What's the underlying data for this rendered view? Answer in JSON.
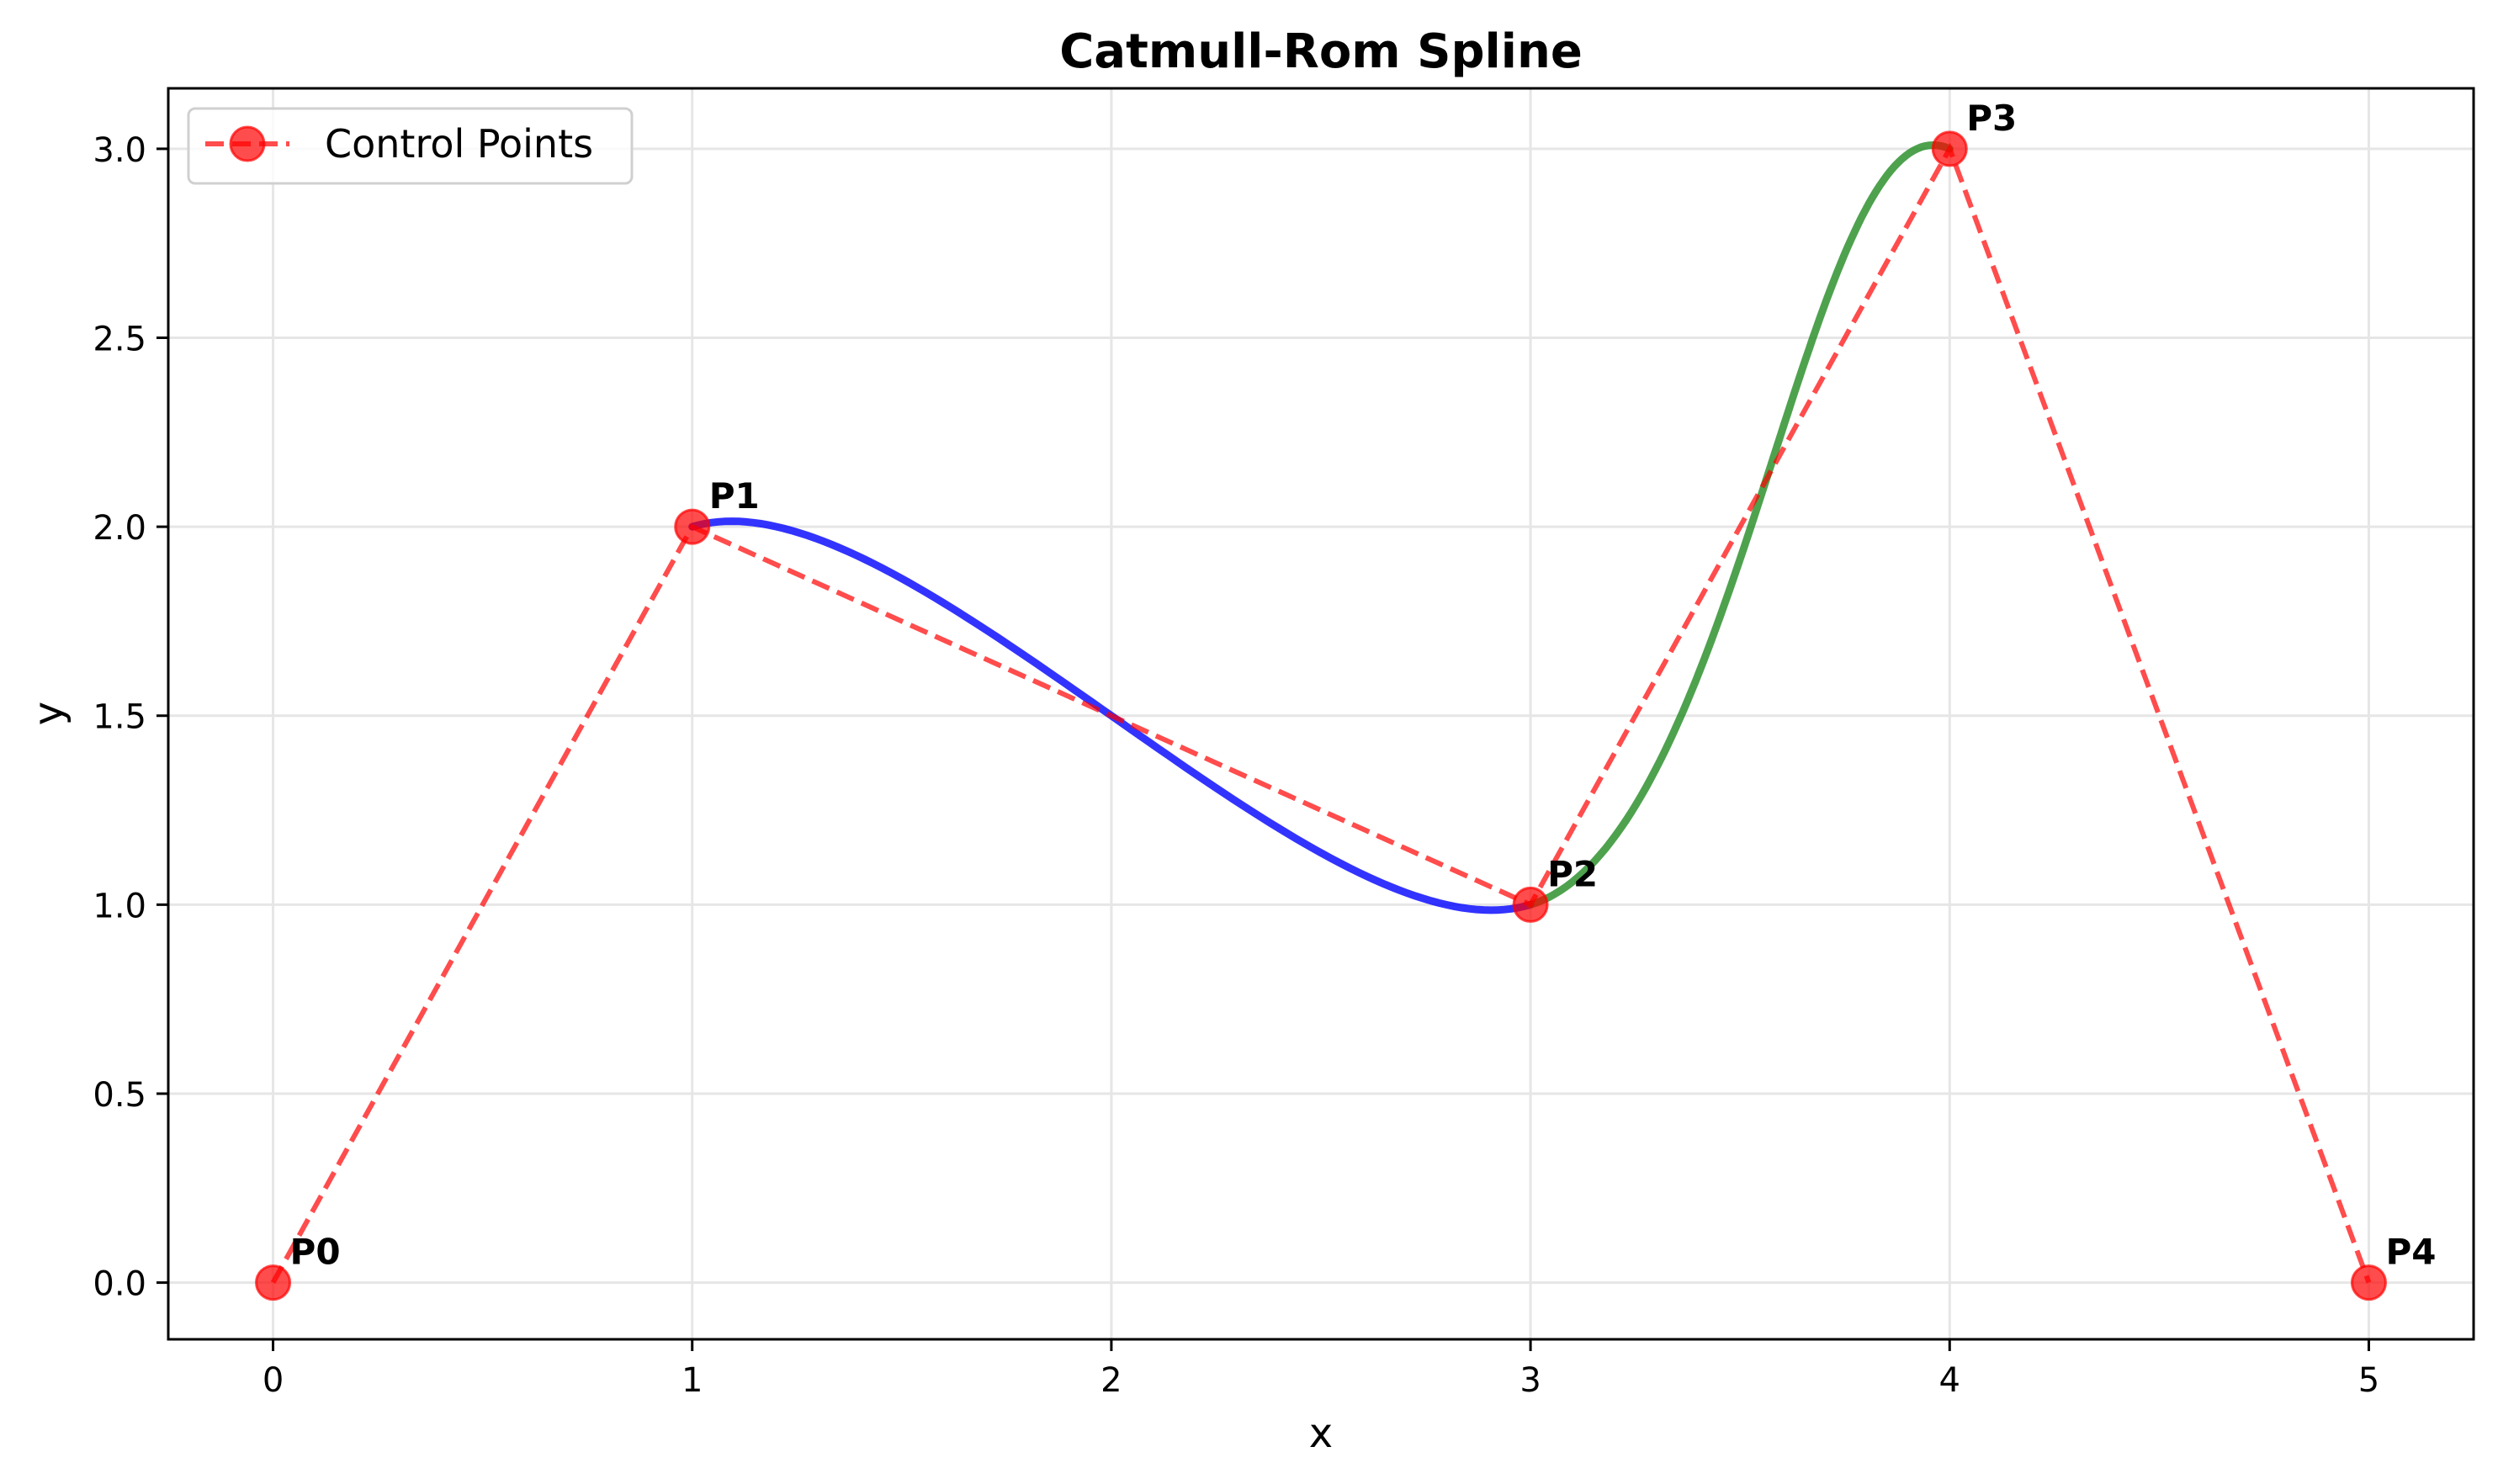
{
  "chart_data": {
    "type": "line",
    "title": "Catmull-Rom Spline",
    "xlabel": "x",
    "ylabel": "y",
    "xlim": [
      -0.25,
      5.25
    ],
    "ylim": [
      -0.15,
      3.16
    ],
    "grid": true,
    "xticks": [
      0,
      1,
      2,
      3,
      4,
      5
    ],
    "xtick_labels": [
      "0",
      "1",
      "2",
      "3",
      "4",
      "5"
    ],
    "yticks": [
      0,
      0.5,
      1,
      1.5,
      2,
      2.5,
      3
    ],
    "ytick_labels": [
      "0.0",
      "0.5",
      "1.0",
      "1.5",
      "2.0",
      "2.5",
      "3.0"
    ],
    "legend": {
      "placement": "top-left",
      "entries": [
        "Control Points"
      ]
    },
    "control_points": {
      "name": "Control Points",
      "x": [
        0,
        1,
        3,
        4,
        5
      ],
      "y": [
        0,
        2,
        1,
        3,
        0
      ],
      "labels": [
        "P0",
        "P1",
        "P2",
        "P3",
        "P4"
      ],
      "color": "#ff0000",
      "style": "dashed with circle markers"
    },
    "spline_segments": [
      {
        "name": "segment-1",
        "from": "P1",
        "to": "P2",
        "color": "#0000ff"
      },
      {
        "name": "segment-2",
        "from": "P2",
        "to": "P3",
        "color": "#228b22"
      }
    ]
  }
}
